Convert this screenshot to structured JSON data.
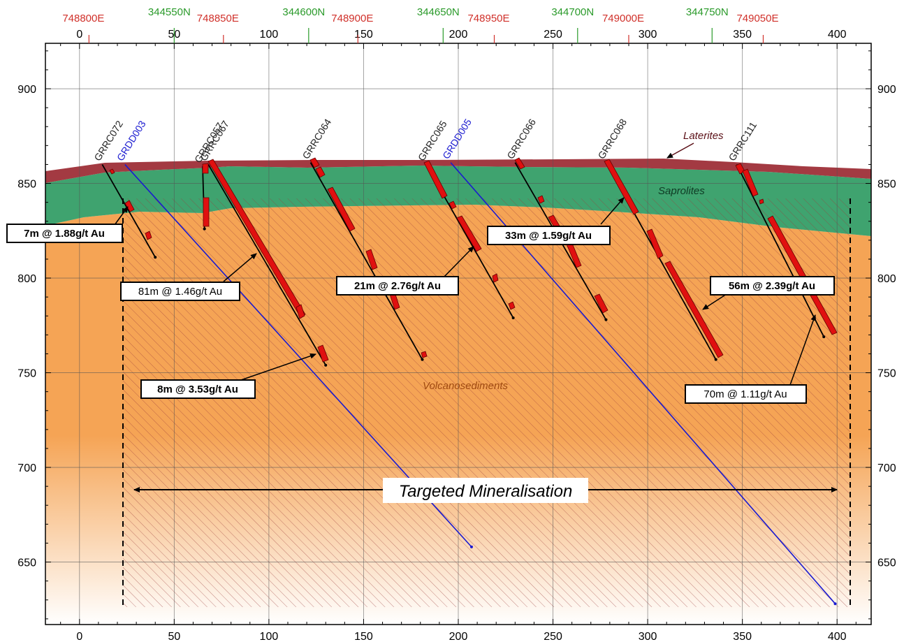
{
  "axes": {
    "x_ticks": [
      "0",
      "50",
      "100",
      "150",
      "200",
      "250",
      "300",
      "350",
      "400"
    ],
    "x_tick_values": [
      0,
      50,
      100,
      150,
      200,
      250,
      300,
      350,
      400
    ],
    "y_ticks": [
      "650",
      "700",
      "750",
      "800",
      "850",
      "900"
    ],
    "y_tick_values": [
      650,
      700,
      750,
      800,
      850,
      900
    ],
    "x_range": [
      -18,
      418
    ],
    "y_range": [
      617,
      924
    ]
  },
  "eastings": [
    {
      "label": "748800E",
      "x": 5
    },
    {
      "label": "748850E",
      "x": 76
    },
    {
      "label": "748900E",
      "x": 147
    },
    {
      "label": "748950E",
      "x": 219
    },
    {
      "label": "749000E",
      "x": 290
    },
    {
      "label": "749050E",
      "x": 361
    }
  ],
  "northings": [
    {
      "label": "344550N",
      "x": 50
    },
    {
      "label": "344600N",
      "x": 121
    },
    {
      "label": "344650N",
      "x": 192
    },
    {
      "label": "344700N",
      "x": 263
    },
    {
      "label": "344750N",
      "x": 334
    }
  ],
  "colors": {
    "laterite": "#a33a42",
    "saprolite": "#3fa36f",
    "volcano": "#f5a455",
    "hole": "#000000",
    "diamond_hole": "#1a1ad0",
    "intercept": "#e01010",
    "northing": "#2a9a2a",
    "easting": "#d0302a"
  },
  "units": {
    "laterites": "Laterites",
    "saprolites": "Saprolites",
    "volcanosediments": "Volcanosediments"
  },
  "target": {
    "label": "Targeted Mineralisation"
  },
  "holes": [
    {
      "name": "GRRC072",
      "type": "RC",
      "start": [
        12,
        860
      ],
      "end": [
        40,
        811
      ]
    },
    {
      "name": "GRDD003",
      "type": "DD",
      "start": [
        24,
        860
      ],
      "end": [
        207,
        658
      ]
    },
    {
      "name": "GRRC057",
      "type": "RC",
      "start": [
        65,
        859
      ],
      "end": [
        66,
        826
      ]
    },
    {
      "name": "GRRC067",
      "type": "RC",
      "start": [
        68,
        860
      ],
      "end": [
        130,
        754
      ]
    },
    {
      "name": "GRRC064",
      "type": "RC",
      "start": [
        122,
        861
      ],
      "end": [
        181,
        757
      ]
    },
    {
      "name": "GRRC065",
      "type": "RC",
      "start": [
        183,
        860
      ],
      "end": [
        229,
        779
      ]
    },
    {
      "name": "GRDD005",
      "type": "DD",
      "start": [
        196,
        861
      ],
      "end": [
        399,
        628
      ]
    },
    {
      "name": "GRRC066",
      "type": "RC",
      "start": [
        230,
        861
      ],
      "end": [
        278,
        778
      ]
    },
    {
      "name": "GRRC068",
      "type": "RC",
      "start": [
        278,
        861
      ],
      "end": [
        336,
        757
      ]
    },
    {
      "name": "GRRC111",
      "type": "RC",
      "start": [
        347,
        860
      ],
      "end": [
        393,
        769
      ]
    }
  ],
  "intercepts": [
    {
      "label": "7m @ 1.88g/t Au",
      "bold": true
    },
    {
      "label": "81m @ 1.46g/t Au",
      "bold": false
    },
    {
      "label": "8m @ 3.53g/t Au",
      "bold": true
    },
    {
      "label": "21m @ 2.76g/t Au",
      "bold": true
    },
    {
      "label": "33m @ 1.59g/t Au",
      "bold": true
    },
    {
      "label": "56m @ 2.39g/t Au",
      "bold": true
    },
    {
      "label": "70m @ 1.11g/t Au",
      "bold": false
    }
  ]
}
